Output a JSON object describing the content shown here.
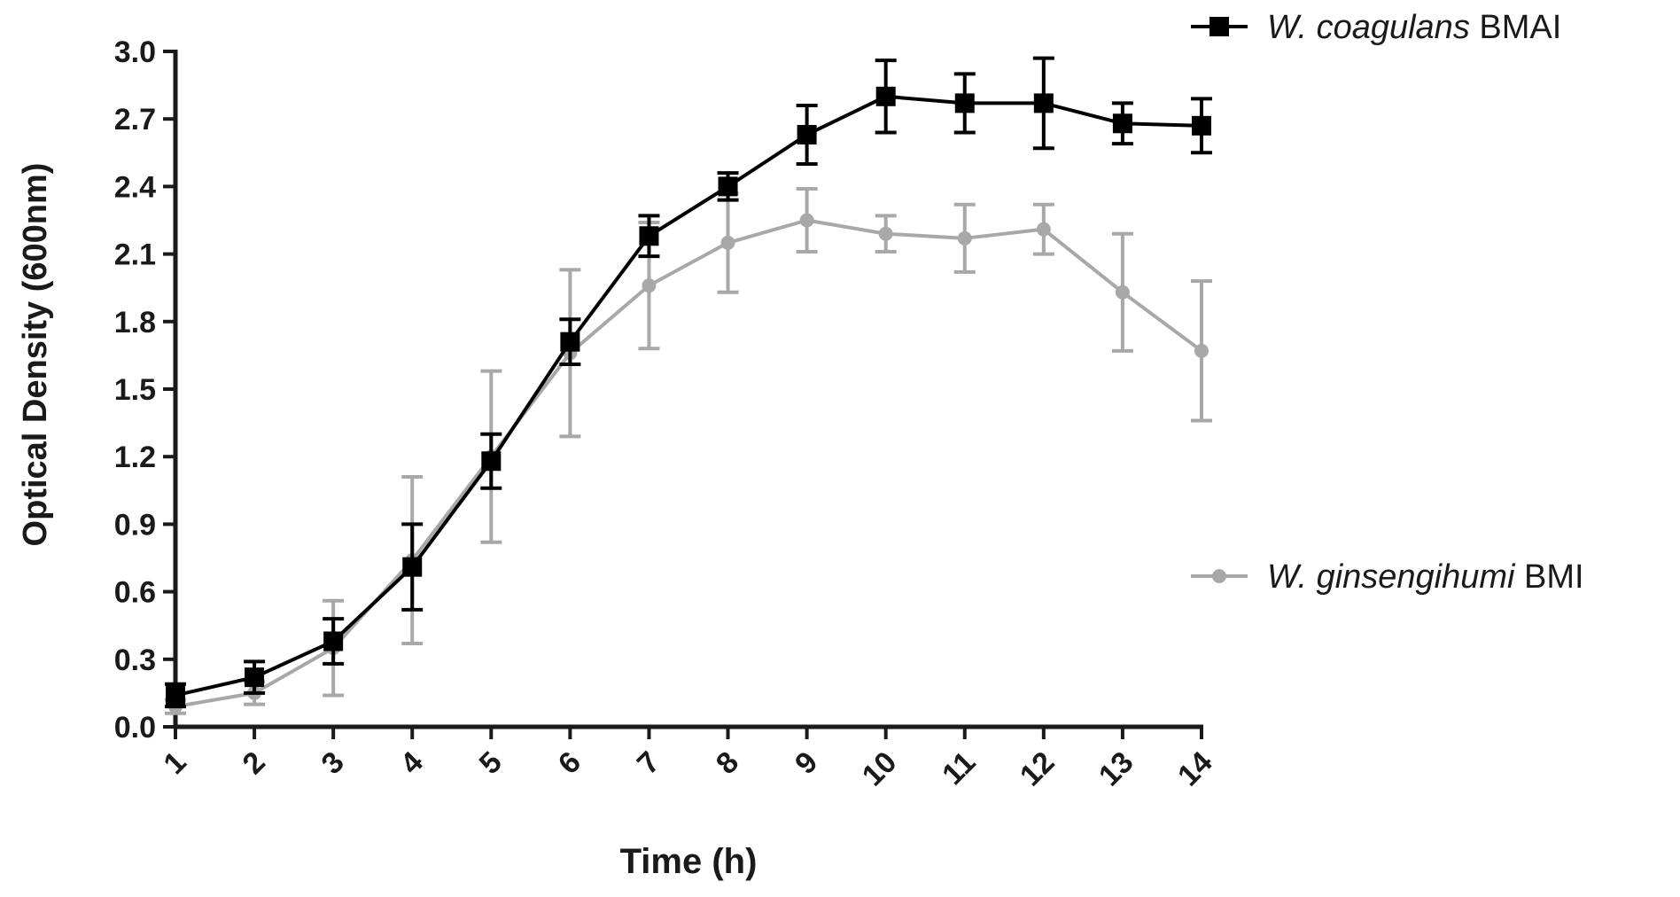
{
  "chart_data": {
    "type": "line",
    "title": "",
    "xlabel": "Time (h)",
    "ylabel": "Optical Density (600nm)",
    "x": [
      1,
      2,
      3,
      4,
      5,
      6,
      7,
      8,
      9,
      10,
      11,
      12,
      13,
      14
    ],
    "xlim": [
      1,
      14
    ],
    "ylim": [
      0,
      3.0
    ],
    "yticks": [
      0.0,
      0.3,
      0.6,
      0.9,
      1.2,
      1.5,
      1.8,
      2.1,
      2.4,
      2.7,
      3.0
    ],
    "ytick_labels": [
      "0.0",
      "0.3",
      "0.6",
      "0.9",
      "1.2",
      "1.5",
      "1.8",
      "2.1",
      "2.4",
      "2.7",
      "3.0"
    ],
    "xtick_labels": [
      "1",
      "2",
      "3",
      "4",
      "5",
      "6",
      "7",
      "8",
      "9",
      "10",
      "11",
      "12",
      "13",
      "14"
    ],
    "grid": false,
    "legend_position": "right",
    "series": [
      {
        "name_italic": "W. coagulans",
        "name_suffix": " BMAI",
        "marker": "square",
        "color": "#000000",
        "values": [
          0.14,
          0.22,
          0.38,
          0.71,
          1.18,
          1.71,
          2.18,
          2.4,
          2.63,
          2.8,
          2.77,
          2.77,
          2.68,
          2.67
        ],
        "errors": [
          0.05,
          0.07,
          0.1,
          0.19,
          0.12,
          0.1,
          0.09,
          0.06,
          0.13,
          0.16,
          0.13,
          0.2,
          0.09,
          0.12
        ]
      },
      {
        "name_italic": "W. ginsengihumi",
        "name_suffix": " BMI",
        "marker": "circle",
        "color": "#a8a8a8",
        "values": [
          0.09,
          0.15,
          0.35,
          0.74,
          1.2,
          1.66,
          1.96,
          2.15,
          2.25,
          2.19,
          2.17,
          2.21,
          1.93,
          1.67
        ],
        "errors": [
          0.03,
          0.05,
          0.21,
          0.37,
          0.38,
          0.37,
          0.28,
          0.22,
          0.14,
          0.08,
          0.15,
          0.11,
          0.26,
          0.31
        ]
      }
    ]
  }
}
